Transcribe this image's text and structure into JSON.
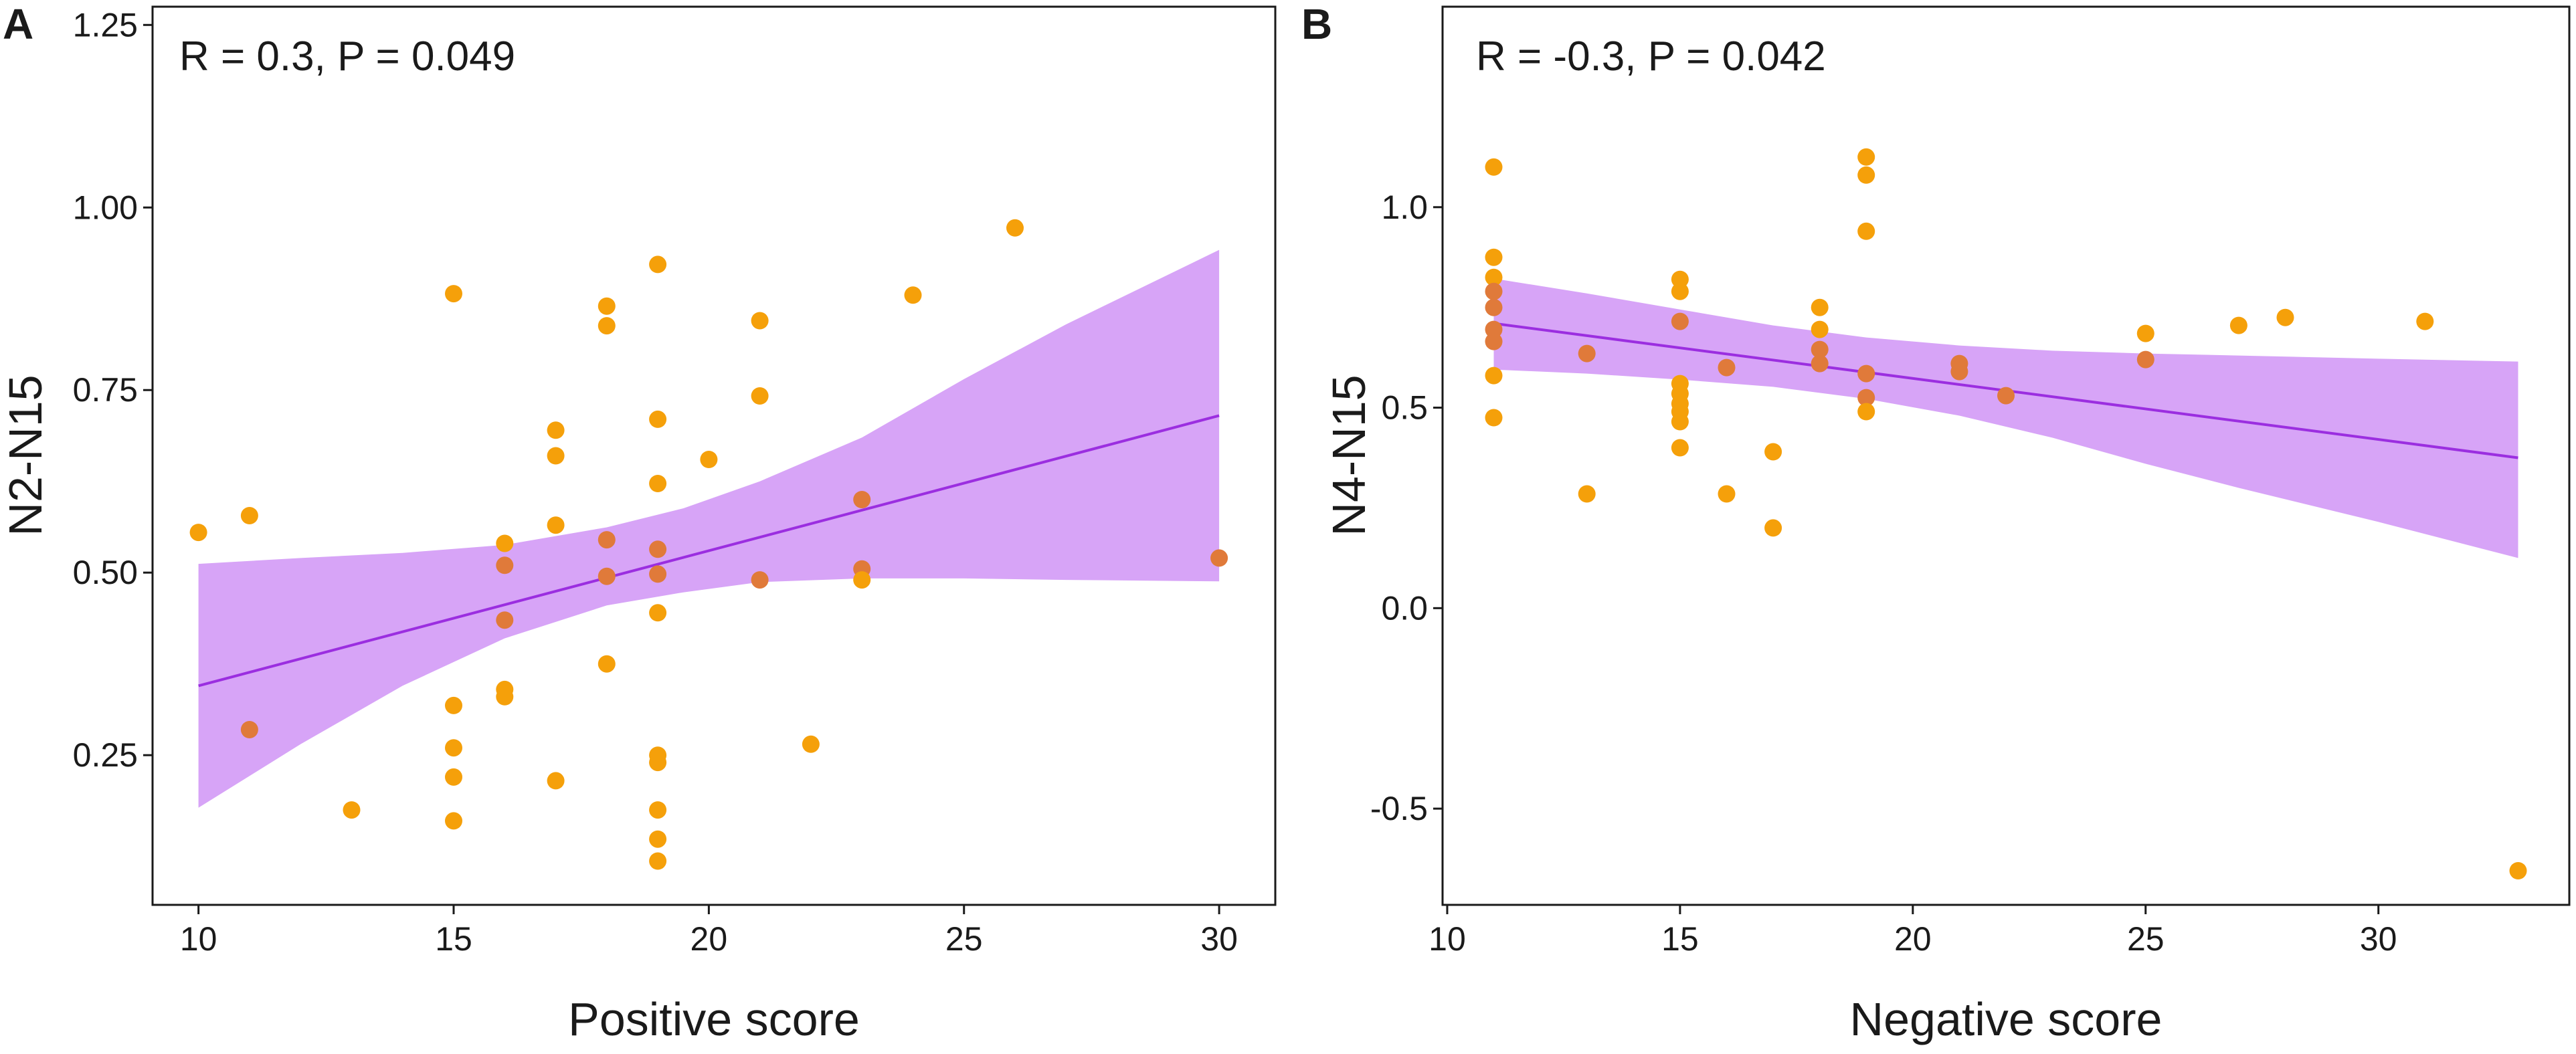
{
  "chart_data": [
    {
      "type": "scatter",
      "panel_label": "A",
      "title": "",
      "annotation": "R = 0.3, P = 0.049",
      "xlabel": "Positive score",
      "ylabel": "N2-N15",
      "xlim": [
        9.1,
        31.1
      ],
      "ylim": [
        0.045,
        1.275
      ],
      "x_ticks": [
        10,
        15,
        20,
        25,
        30
      ],
      "y_ticks": [
        0.25,
        0.5,
        0.75,
        1.0,
        1.25
      ],
      "y_tick_labels": [
        "0.25",
        "0.50",
        "0.75",
        "1.00",
        "1.25"
      ],
      "points": [
        [
          10,
          0.555
        ],
        [
          11,
          0.578
        ],
        [
          11,
          0.285
        ],
        [
          13,
          0.175
        ],
        [
          15,
          0.882
        ],
        [
          15,
          0.318
        ],
        [
          15,
          0.26
        ],
        [
          15,
          0.22
        ],
        [
          15,
          0.16
        ],
        [
          16,
          0.54
        ],
        [
          16,
          0.51
        ],
        [
          16,
          0.435
        ],
        [
          16,
          0.34
        ],
        [
          16,
          0.33
        ],
        [
          17,
          0.695
        ],
        [
          17,
          0.66
        ],
        [
          17,
          0.565
        ],
        [
          17,
          0.215
        ],
        [
          18,
          0.865
        ],
        [
          18,
          0.838
        ],
        [
          18,
          0.545
        ],
        [
          18,
          0.495
        ],
        [
          18,
          0.375
        ],
        [
          19,
          0.922
        ],
        [
          19,
          0.71
        ],
        [
          19,
          0.622
        ],
        [
          19,
          0.532
        ],
        [
          19,
          0.498
        ],
        [
          19,
          0.445
        ],
        [
          19,
          0.25
        ],
        [
          19,
          0.24
        ],
        [
          19,
          0.175
        ],
        [
          19,
          0.135
        ],
        [
          19,
          0.105
        ],
        [
          20,
          0.655
        ],
        [
          21,
          0.845
        ],
        [
          21,
          0.742
        ],
        [
          21,
          0.49
        ],
        [
          22,
          0.265
        ],
        [
          23,
          0.6
        ],
        [
          23,
          0.505
        ],
        [
          23,
          0.49
        ],
        [
          24,
          0.88
        ],
        [
          26,
          0.972
        ],
        [
          30,
          0.52
        ]
      ],
      "regression": {
        "x": [
          10,
          30
        ],
        "y": [
          0.345,
          0.715
        ]
      },
      "confidence_band": {
        "x": [
          10,
          12,
          14,
          16,
          18,
          19.5,
          21,
          23,
          25,
          27,
          30
        ],
        "lower": [
          0.178,
          0.265,
          0.345,
          0.41,
          0.455,
          0.473,
          0.487,
          0.492,
          0.492,
          0.49,
          0.488
        ],
        "upper": [
          0.512,
          0.52,
          0.527,
          0.538,
          0.562,
          0.588,
          0.625,
          0.685,
          0.765,
          0.84,
          0.942
        ]
      },
      "colors": {
        "points": "#F5A00A",
        "line": "#9B2EE0",
        "band": "#D7A4F7",
        "overlap_points": "#E07A3A"
      }
    },
    {
      "type": "scatter",
      "panel_label": "B",
      "title": "",
      "annotation": "R = -0.3, P = 0.042",
      "xlabel": "Negative score",
      "ylabel": "N4-N15",
      "xlim": [
        9.9,
        34.1
      ],
      "ylim": [
        -0.74,
        1.5
      ],
      "x_ticks": [
        10,
        15,
        20,
        25,
        30
      ],
      "y_ticks": [
        -0.5,
        0.0,
        0.5,
        1.0
      ],
      "y_tick_labels": [
        "-0.5",
        "0.0",
        "0.5",
        "1.0"
      ],
      "points": [
        [
          11,
          1.1
        ],
        [
          11,
          0.875
        ],
        [
          11,
          0.825
        ],
        [
          11,
          0.79
        ],
        [
          11,
          0.75
        ],
        [
          11,
          0.695
        ],
        [
          11,
          0.665
        ],
        [
          11,
          0.58
        ],
        [
          11,
          0.475
        ],
        [
          13,
          0.635
        ],
        [
          13,
          0.285
        ],
        [
          15,
          0.82
        ],
        [
          15,
          0.79
        ],
        [
          15,
          0.715
        ],
        [
          15,
          0.56
        ],
        [
          15,
          0.535
        ],
        [
          15,
          0.51
        ],
        [
          15,
          0.49
        ],
        [
          15,
          0.465
        ],
        [
          15,
          0.4
        ],
        [
          16,
          0.6
        ],
        [
          16,
          0.285
        ],
        [
          17,
          0.39
        ],
        [
          17,
          0.2
        ],
        [
          18,
          0.75
        ],
        [
          18,
          0.695
        ],
        [
          18,
          0.645
        ],
        [
          18,
          0.61
        ],
        [
          19,
          1.125
        ],
        [
          19,
          1.08
        ],
        [
          19,
          0.94
        ],
        [
          19,
          0.585
        ],
        [
          19,
          0.525
        ],
        [
          19,
          0.49
        ],
        [
          21,
          0.61
        ],
        [
          21,
          0.59
        ],
        [
          22,
          0.53
        ],
        [
          25,
          0.685
        ],
        [
          25,
          0.62
        ],
        [
          27,
          0.705
        ],
        [
          28,
          0.725
        ],
        [
          31,
          0.715
        ],
        [
          33,
          -0.655
        ]
      ],
      "regression": {
        "x": [
          11,
          33
        ],
        "y": [
          0.71,
          0.375
        ]
      },
      "confidence_band": {
        "x": [
          11,
          13,
          15,
          17,
          19,
          21,
          23,
          25,
          27,
          30,
          33
        ],
        "lower": [
          0.595,
          0.585,
          0.57,
          0.552,
          0.522,
          0.48,
          0.425,
          0.36,
          0.3,
          0.215,
          0.125
        ],
        "upper": [
          0.822,
          0.785,
          0.745,
          0.705,
          0.675,
          0.655,
          0.642,
          0.635,
          0.63,
          0.622,
          0.615
        ]
      },
      "colors": {
        "points": "#F5A00A",
        "line": "#9B2EE0",
        "band": "#D7A4F7",
        "overlap_points": "#E07A3A"
      }
    }
  ]
}
